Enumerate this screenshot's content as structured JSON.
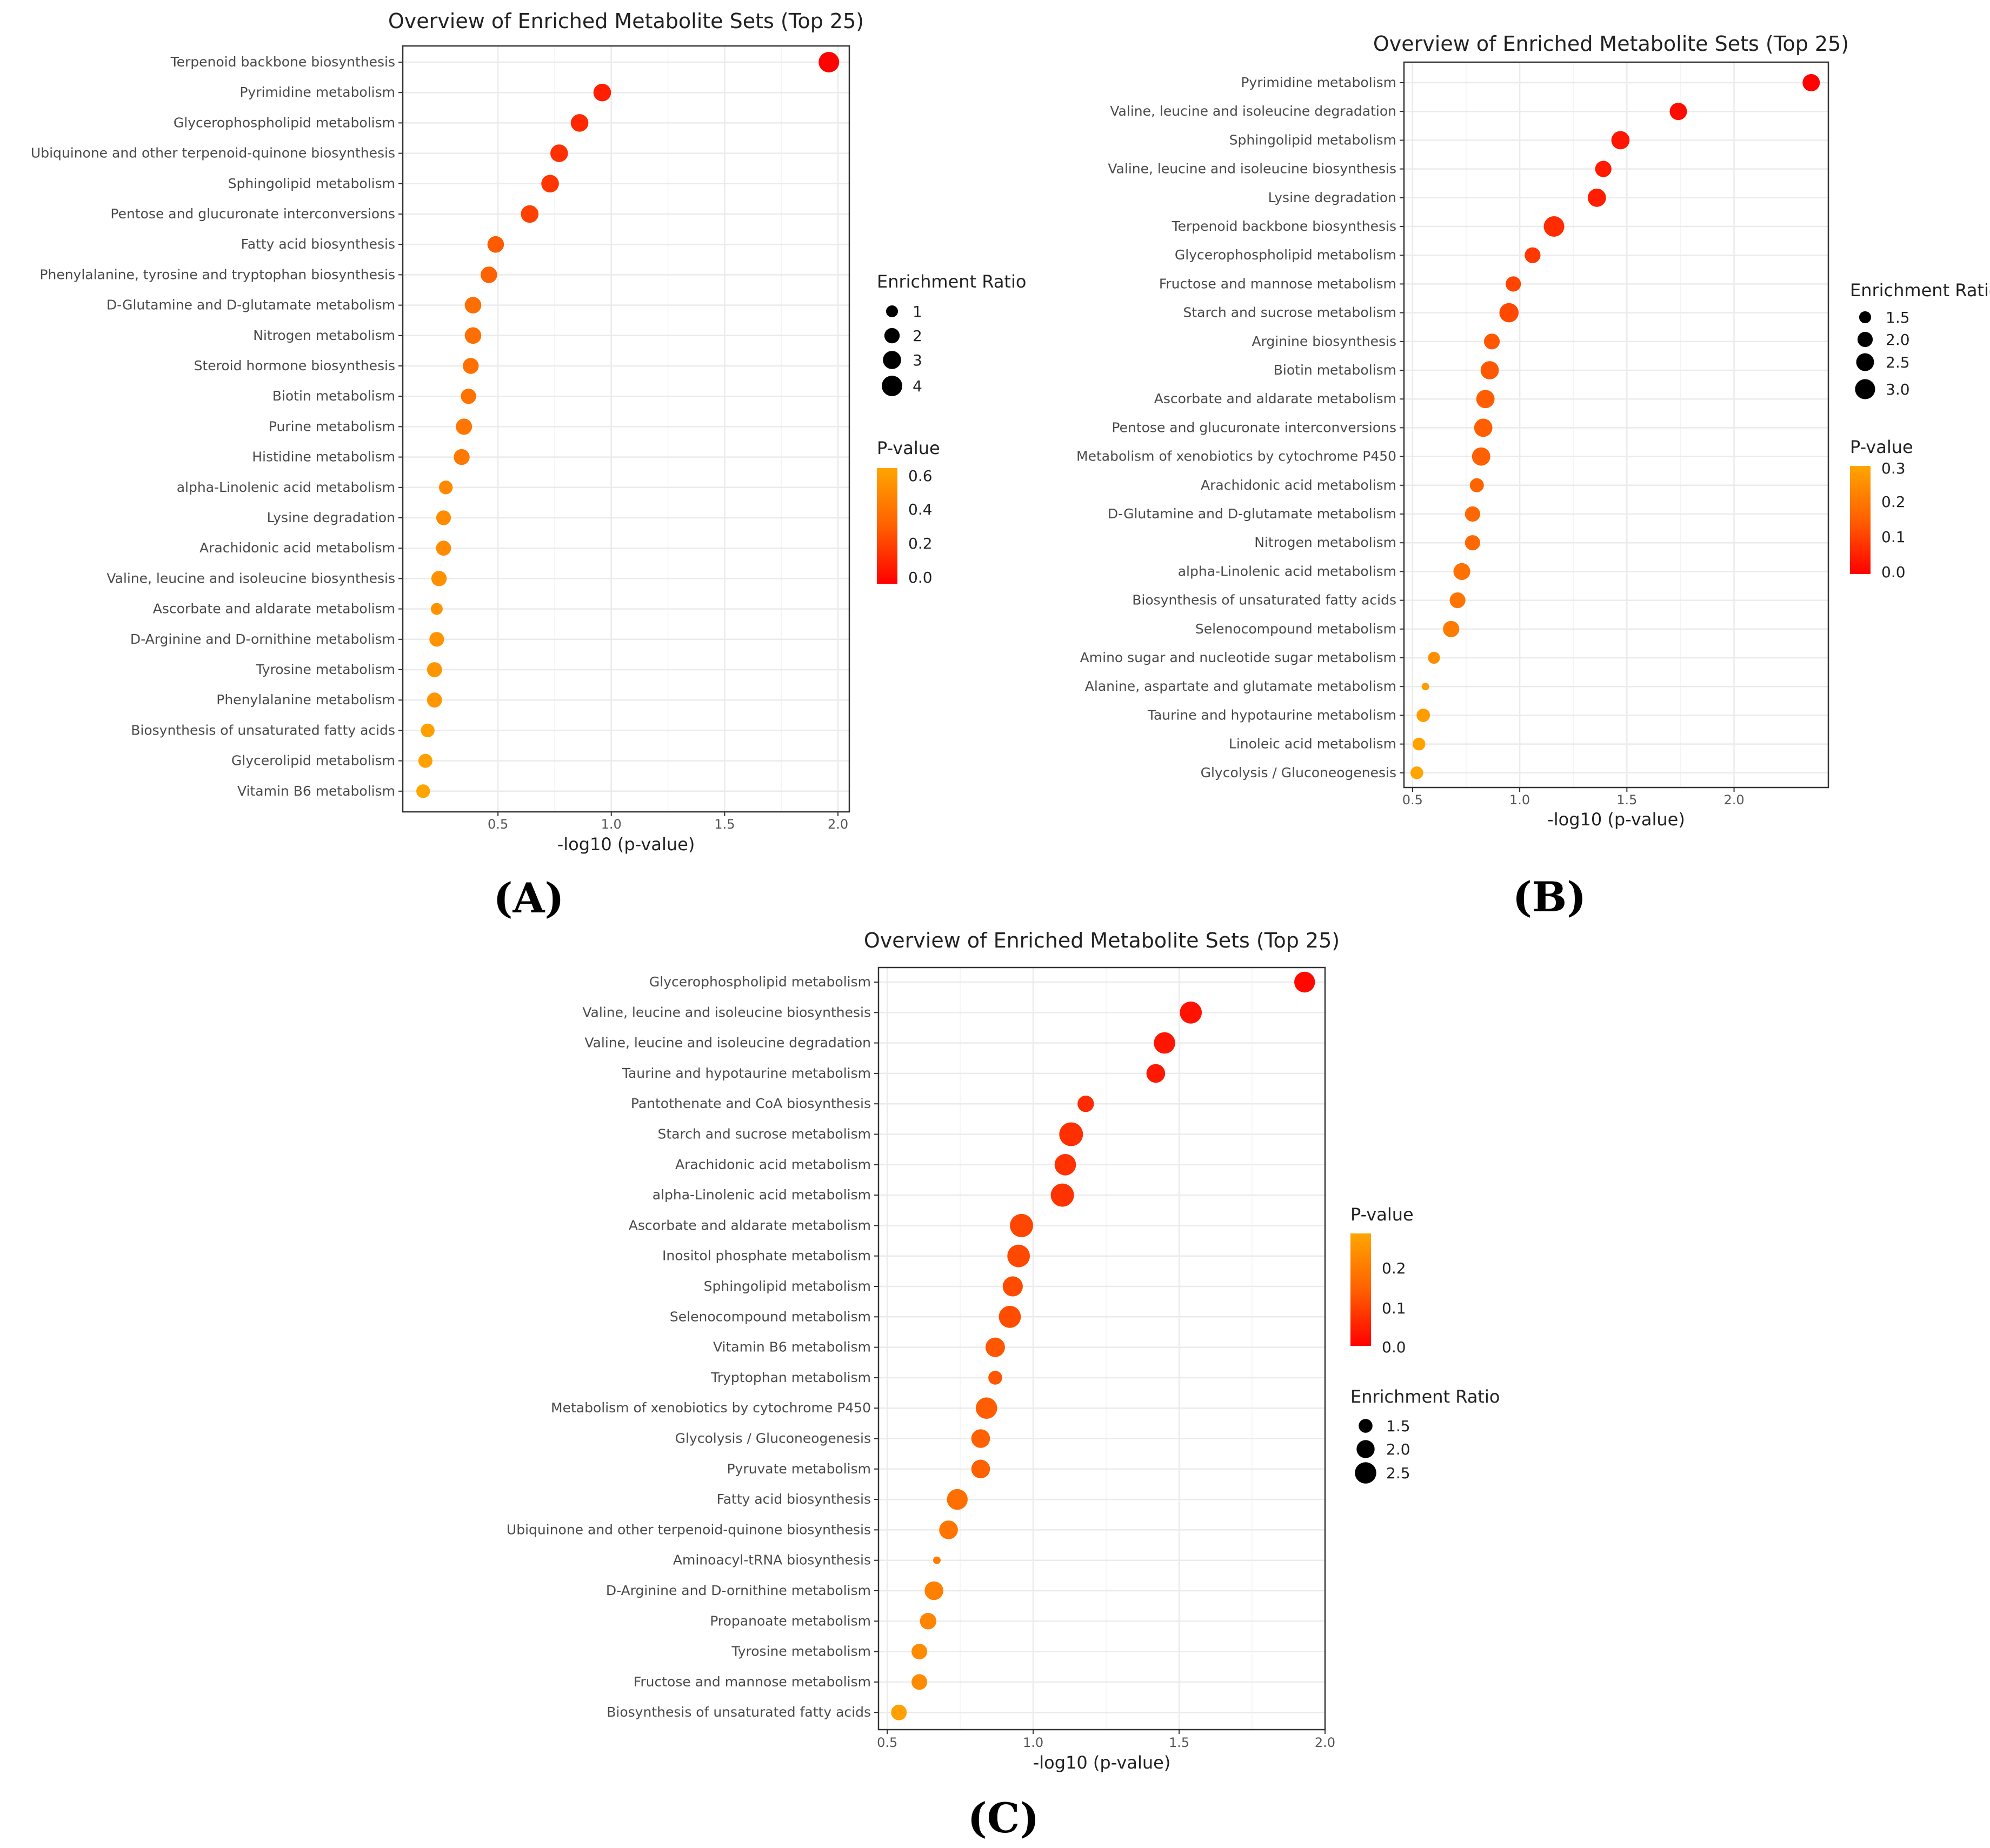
{
  "colors": {
    "low_p": "#ff0000",
    "mid_p": "#ff6000",
    "high_p": "#ffa500",
    "grid": "#ebebeb",
    "frame": "#333333"
  },
  "chart_data": [
    {
      "panel": "(A)",
      "type": "scatter",
      "title": "Overview of Enriched Metabolite Sets (Top 25)",
      "xlabel": "-log10 (p-value)",
      "xlim": [
        0.08,
        2.05
      ],
      "xticks": [
        "0.5",
        "1.0",
        "1.5",
        "2.0"
      ],
      "xtick_values": [
        0.5,
        1.0,
        1.5,
        2.0
      ],
      "legend_order": [
        "size",
        "color"
      ],
      "size_legend": {
        "title": "Enrichment Ratio",
        "labels": [
          "1",
          "2",
          "3",
          "4"
        ],
        "values": [
          1,
          2,
          3,
          4
        ],
        "min": 1,
        "max": 4
      },
      "color_legend": {
        "title": "P-value",
        "labels": [
          "0.6",
          "0.4",
          "0.2",
          "0.0"
        ],
        "values": [
          0.6,
          0.4,
          0.2,
          0.0
        ],
        "max": 0.68
      },
      "points": [
        {
          "name": "Terpenoid backbone biosynthesis",
          "x": 1.96,
          "ratio": 4.2,
          "p": 0.01
        },
        {
          "name": "Pyrimidine metabolism",
          "x": 0.96,
          "ratio": 2.8,
          "p": 0.11
        },
        {
          "name": "Glycerophospholipid metabolism",
          "x": 0.86,
          "ratio": 2.8,
          "p": 0.14
        },
        {
          "name": "Ubiquinone and other terpenoid-quinone biosynthesis",
          "x": 0.77,
          "ratio": 2.8,
          "p": 0.17
        },
        {
          "name": "Sphingolipid metabolism",
          "x": 0.73,
          "ratio": 2.8,
          "p": 0.19
        },
        {
          "name": "Pentose and glucuronate interconversions",
          "x": 0.64,
          "ratio": 2.8,
          "p": 0.23
        },
        {
          "name": "Fatty acid biosynthesis",
          "x": 0.49,
          "ratio": 2.4,
          "p": 0.32
        },
        {
          "name": "Phenylalanine, tyrosine and tryptophan biosynthesis",
          "x": 0.46,
          "ratio": 2.4,
          "p": 0.35
        },
        {
          "name": "D-Glutamine and D-glutamate metabolism",
          "x": 0.39,
          "ratio": 2.4,
          "p": 0.41
        },
        {
          "name": "Nitrogen metabolism",
          "x": 0.39,
          "ratio": 2.4,
          "p": 0.41
        },
        {
          "name": "Steroid hormone biosynthesis",
          "x": 0.38,
          "ratio": 2.2,
          "p": 0.42
        },
        {
          "name": "Biotin metabolism",
          "x": 0.37,
          "ratio": 2.0,
          "p": 0.43
        },
        {
          "name": "Purine metabolism",
          "x": 0.35,
          "ratio": 2.3,
          "p": 0.45
        },
        {
          "name": "Histidine metabolism",
          "x": 0.34,
          "ratio": 2.2,
          "p": 0.46
        },
        {
          "name": "alpha-Linolenic acid metabolism",
          "x": 0.27,
          "ratio": 1.5,
          "p": 0.54
        },
        {
          "name": "Lysine degradation",
          "x": 0.26,
          "ratio": 1.8,
          "p": 0.55
        },
        {
          "name": "Arachidonic acid metabolism",
          "x": 0.26,
          "ratio": 1.9,
          "p": 0.55
        },
        {
          "name": "Valine, leucine and isoleucine biosynthesis",
          "x": 0.24,
          "ratio": 2.0,
          "p": 0.58
        },
        {
          "name": "Ascorbate and aldarate metabolism",
          "x": 0.23,
          "ratio": 1.0,
          "p": 0.59
        },
        {
          "name": "D-Arginine and D-ornithine metabolism",
          "x": 0.23,
          "ratio": 1.8,
          "p": 0.59
        },
        {
          "name": "Tyrosine metabolism",
          "x": 0.22,
          "ratio": 1.9,
          "p": 0.6
        },
        {
          "name": "Phenylalanine metabolism",
          "x": 0.22,
          "ratio": 1.9,
          "p": 0.6
        },
        {
          "name": "Biosynthesis of unsaturated fatty acids",
          "x": 0.19,
          "ratio": 1.5,
          "p": 0.65
        },
        {
          "name": "Glycerolipid metabolism",
          "x": 0.18,
          "ratio": 1.6,
          "p": 0.66
        },
        {
          "name": "Vitamin B6 metabolism",
          "x": 0.17,
          "ratio": 1.5,
          "p": 0.68
        }
      ]
    },
    {
      "panel": "(B)",
      "type": "scatter",
      "title": "Overview of Enriched Metabolite Sets (Top 25)",
      "xlabel": "-log10 (p-value)",
      "xlim": [
        0.46,
        2.44
      ],
      "xticks": [
        "0.5",
        "1.0",
        "1.5",
        "2.0"
      ],
      "xtick_values": [
        0.5,
        1.0,
        1.5,
        2.0
      ],
      "legend_order": [
        "size",
        "color"
      ],
      "size_legend": {
        "title": "Enrichment Ratio",
        "labels": [
          "1.5",
          "2.0",
          "2.5",
          "3.0"
        ],
        "values": [
          1.5,
          2.0,
          2.5,
          3.0
        ],
        "min": 1.0,
        "max": 3.1
      },
      "color_legend": {
        "title": "P-value",
        "labels": [
          "0.3",
          "0.2",
          "0.1",
          "0.0"
        ],
        "values": [
          0.3,
          0.2,
          0.1,
          0.0
        ],
        "max": 0.3
      },
      "points": [
        {
          "name": "Pyrimidine metabolism",
          "x": 2.36,
          "ratio": 2.4,
          "p": 0.004
        },
        {
          "name": "Valine, leucine and isoleucine degradation",
          "x": 1.74,
          "ratio": 2.4,
          "p": 0.018
        },
        {
          "name": "Sphingolipid metabolism",
          "x": 1.47,
          "ratio": 2.6,
          "p": 0.034
        },
        {
          "name": "Valine, leucine and isoleucine biosynthesis",
          "x": 1.39,
          "ratio": 2.2,
          "p": 0.041
        },
        {
          "name": "Lysine degradation",
          "x": 1.36,
          "ratio": 2.6,
          "p": 0.044
        },
        {
          "name": "Terpenoid backbone biosynthesis",
          "x": 1.16,
          "ratio": 3.1,
          "p": 0.069
        },
        {
          "name": "Glycerophospholipid metabolism",
          "x": 1.06,
          "ratio": 2.1,
          "p": 0.087
        },
        {
          "name": "Fructose and mannose metabolism",
          "x": 0.97,
          "ratio": 2.0,
          "p": 0.107
        },
        {
          "name": "Starch and sucrose metabolism",
          "x": 0.95,
          "ratio": 2.8,
          "p": 0.112
        },
        {
          "name": "Arginine biosynthesis",
          "x": 0.87,
          "ratio": 2.1,
          "p": 0.135
        },
        {
          "name": "Biotin metabolism",
          "x": 0.86,
          "ratio": 2.6,
          "p": 0.138
        },
        {
          "name": "Ascorbate and aldarate metabolism",
          "x": 0.84,
          "ratio": 2.6,
          "p": 0.145
        },
        {
          "name": "Pentose and glucuronate interconversions",
          "x": 0.83,
          "ratio": 2.6,
          "p": 0.148
        },
        {
          "name": "Metabolism of xenobiotics by cytochrome P450",
          "x": 0.82,
          "ratio": 2.6,
          "p": 0.151
        },
        {
          "name": "Arachidonic acid metabolism",
          "x": 0.8,
          "ratio": 1.8,
          "p": 0.158
        },
        {
          "name": "D-Glutamine and D-glutamate metabolism",
          "x": 0.78,
          "ratio": 2.0,
          "p": 0.166
        },
        {
          "name": "Nitrogen metabolism",
          "x": 0.78,
          "ratio": 2.0,
          "p": 0.166
        },
        {
          "name": "alpha-Linolenic acid metabolism",
          "x": 0.73,
          "ratio": 2.3,
          "p": 0.186
        },
        {
          "name": "Biosynthesis of unsaturated fatty acids",
          "x": 0.71,
          "ratio": 2.1,
          "p": 0.195
        },
        {
          "name": "Selenocompound metabolism",
          "x": 0.68,
          "ratio": 2.2,
          "p": 0.209
        },
        {
          "name": "Amino sugar and nucleotide sugar metabolism",
          "x": 0.6,
          "ratio": 1.5,
          "p": 0.251
        },
        {
          "name": "Alanine, aspartate and glutamate metabolism",
          "x": 0.56,
          "ratio": 1.0,
          "p": 0.275
        },
        {
          "name": "Taurine and hypotaurine metabolism",
          "x": 0.55,
          "ratio": 1.7,
          "p": 0.282
        },
        {
          "name": "Linoleic acid metabolism",
          "x": 0.53,
          "ratio": 1.6,
          "p": 0.295
        },
        {
          "name": "Glycolysis / Gluconeogenesis",
          "x": 0.52,
          "ratio": 1.6,
          "p": 0.302
        }
      ]
    },
    {
      "panel": "(C)",
      "type": "scatter",
      "title": "Overview of Enriched Metabolite Sets (Top 25)",
      "xlabel": "-log10 (p-value)",
      "xlim": [
        0.47,
        2.0
      ],
      "xticks": [
        "0.5",
        "1.0",
        "1.5",
        "2.0"
      ],
      "xtick_values": [
        0.5,
        1.0,
        1.5,
        2.0
      ],
      "legend_order": [
        "color",
        "size"
      ],
      "size_legend": {
        "title": "Enrichment Ratio",
        "labels": [
          "1.5",
          "2.0",
          "2.5"
        ],
        "values": [
          1.5,
          2.0,
          2.5
        ],
        "min": 1.0,
        "max": 2.9
      },
      "color_legend": {
        "title": "P-value",
        "labels": [
          "0.2",
          "0.1",
          "0.0"
        ],
        "values": [
          0.2,
          0.1,
          0.0
        ],
        "max": 0.3
      },
      "points": [
        {
          "name": "Glycerophospholipid metabolism",
          "x": 1.93,
          "ratio": 2.4,
          "p": 0.012
        },
        {
          "name": "Valine, leucine and isoleucine biosynthesis",
          "x": 1.54,
          "ratio": 2.6,
          "p": 0.029
        },
        {
          "name": "Valine, leucine and isoleucine degradation",
          "x": 1.45,
          "ratio": 2.5,
          "p": 0.035
        },
        {
          "name": "Taurine and hypotaurine metabolism",
          "x": 1.42,
          "ratio": 2.1,
          "p": 0.038
        },
        {
          "name": "Pantothenate and CoA biosynthesis",
          "x": 1.18,
          "ratio": 1.8,
          "p": 0.066
        },
        {
          "name": "Starch and sucrose metabolism",
          "x": 1.13,
          "ratio": 2.9,
          "p": 0.074
        },
        {
          "name": "Arachidonic acid metabolism",
          "x": 1.11,
          "ratio": 2.5,
          "p": 0.078
        },
        {
          "name": "alpha-Linolenic acid metabolism",
          "x": 1.1,
          "ratio": 2.8,
          "p": 0.079
        },
        {
          "name": "Ascorbate and aldarate metabolism",
          "x": 0.96,
          "ratio": 2.8,
          "p": 0.11
        },
        {
          "name": "Inositol phosphate metabolism",
          "x": 0.95,
          "ratio": 2.7,
          "p": 0.112
        },
        {
          "name": "Sphingolipid metabolism",
          "x": 0.93,
          "ratio": 2.3,
          "p": 0.117
        },
        {
          "name": "Selenocompound metabolism",
          "x": 0.92,
          "ratio": 2.6,
          "p": 0.12
        },
        {
          "name": "Vitamin B6 metabolism",
          "x": 0.87,
          "ratio": 2.2,
          "p": 0.135
        },
        {
          "name": "Tryptophan metabolism",
          "x": 0.87,
          "ratio": 1.5,
          "p": 0.135
        },
        {
          "name": "Metabolism of xenobiotics by cytochrome P450",
          "x": 0.84,
          "ratio": 2.5,
          "p": 0.145
        },
        {
          "name": "Glycolysis / Gluconeogenesis",
          "x": 0.82,
          "ratio": 2.1,
          "p": 0.151
        },
        {
          "name": "Pyruvate metabolism",
          "x": 0.82,
          "ratio": 2.1,
          "p": 0.151
        },
        {
          "name": "Fatty acid biosynthesis",
          "x": 0.74,
          "ratio": 2.4,
          "p": 0.182
        },
        {
          "name": "Ubiquinone and other terpenoid-quinone biosynthesis",
          "x": 0.71,
          "ratio": 2.1,
          "p": 0.195
        },
        {
          "name": "Aminoacyl-tRNA biosynthesis",
          "x": 0.67,
          "ratio": 1.0,
          "p": 0.214
        },
        {
          "name": "D-Arginine and D-ornithine metabolism",
          "x": 0.66,
          "ratio": 2.1,
          "p": 0.219
        },
        {
          "name": "Propanoate metabolism",
          "x": 0.64,
          "ratio": 1.8,
          "p": 0.229
        },
        {
          "name": "Tyrosine metabolism",
          "x": 0.61,
          "ratio": 1.7,
          "p": 0.245
        },
        {
          "name": "Fructose and mannose metabolism",
          "x": 0.61,
          "ratio": 1.7,
          "p": 0.245
        },
        {
          "name": "Biosynthesis of unsaturated fatty acids",
          "x": 0.54,
          "ratio": 1.7,
          "p": 0.288
        }
      ]
    }
  ]
}
